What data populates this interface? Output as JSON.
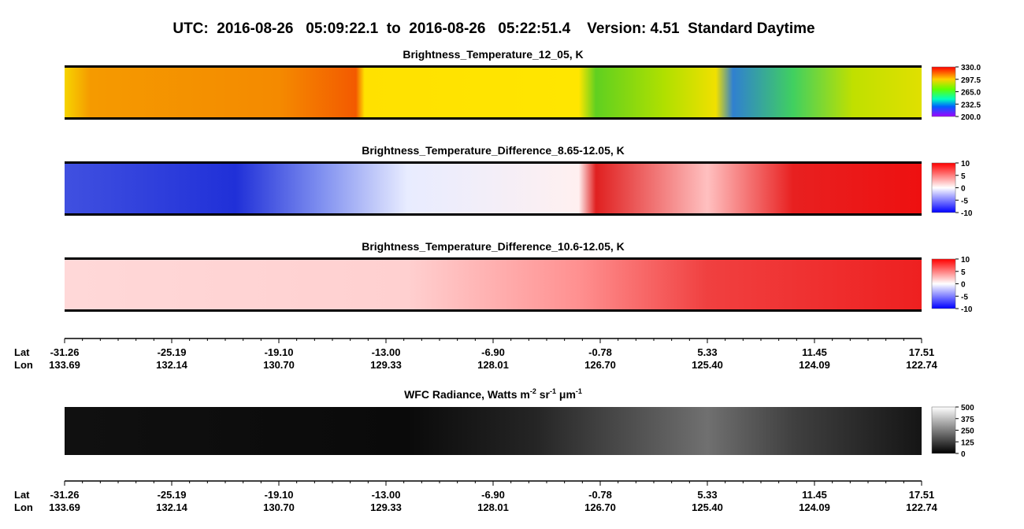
{
  "title": "UTC:  2016-08-26   05:09:22.1  to  2016-08-26   05:22:51.4    Version: 4.51  Standard Daytime",
  "panels": [
    {
      "title": "Brightness_Temperature_12_05, K",
      "colorbar": {
        "lim": [
          200,
          330
        ],
        "ticks": [
          {
            "value": 200,
            "label": "200.0"
          },
          232.5,
          {
            "value": 265,
            "label": "265.0"
          },
          297.5,
          {
            "value": 330,
            "label": "330.0"
          }
        ]
      }
    },
    {
      "title": "Brightness_Temperature_Difference_8.65-12.05, K",
      "colorbar": {
        "lim": [
          -10,
          10
        ],
        "ticks": [
          -10,
          -5,
          0,
          5,
          10
        ]
      }
    },
    {
      "title": "Brightness_Temperature_Difference_10.6-12.05, K",
      "colorbar": {
        "lim": [
          -10,
          10
        ],
        "ticks": [
          -10,
          -5,
          0,
          5,
          10
        ]
      }
    },
    {
      "title_parts": [
        "WFC Radiance, Watts m",
        "-2",
        " sr",
        "-1",
        " μm",
        "-1"
      ],
      "colorbar": {
        "lim": [
          0,
          500
        ],
        "ticks": [
          0,
          125,
          250,
          375,
          500
        ]
      }
    }
  ],
  "axes": [
    {
      "lat_label": "Lat",
      "lon_label": "Lon",
      "lat": [
        "-31.26",
        "-25.19",
        "-19.10",
        "-13.00",
        "-6.90",
        "-0.78",
        "5.33",
        "11.45",
        "17.51"
      ],
      "lon": [
        "133.69",
        "132.14",
        "130.70",
        "129.33",
        "128.01",
        "126.70",
        "125.40",
        "124.09",
        "122.74"
      ]
    },
    {
      "lat_label": "Lat",
      "lon_label": "Lon",
      "lat": [
        "-31.26",
        "-25.19",
        "-19.10",
        "-13.00",
        "-6.90",
        "-0.78",
        "5.33",
        "11.45",
        "17.51"
      ],
      "lon": [
        "133.69",
        "132.14",
        "130.70",
        "129.33",
        "128.01",
        "126.70",
        "125.40",
        "124.09",
        "122.74"
      ]
    }
  ]
}
